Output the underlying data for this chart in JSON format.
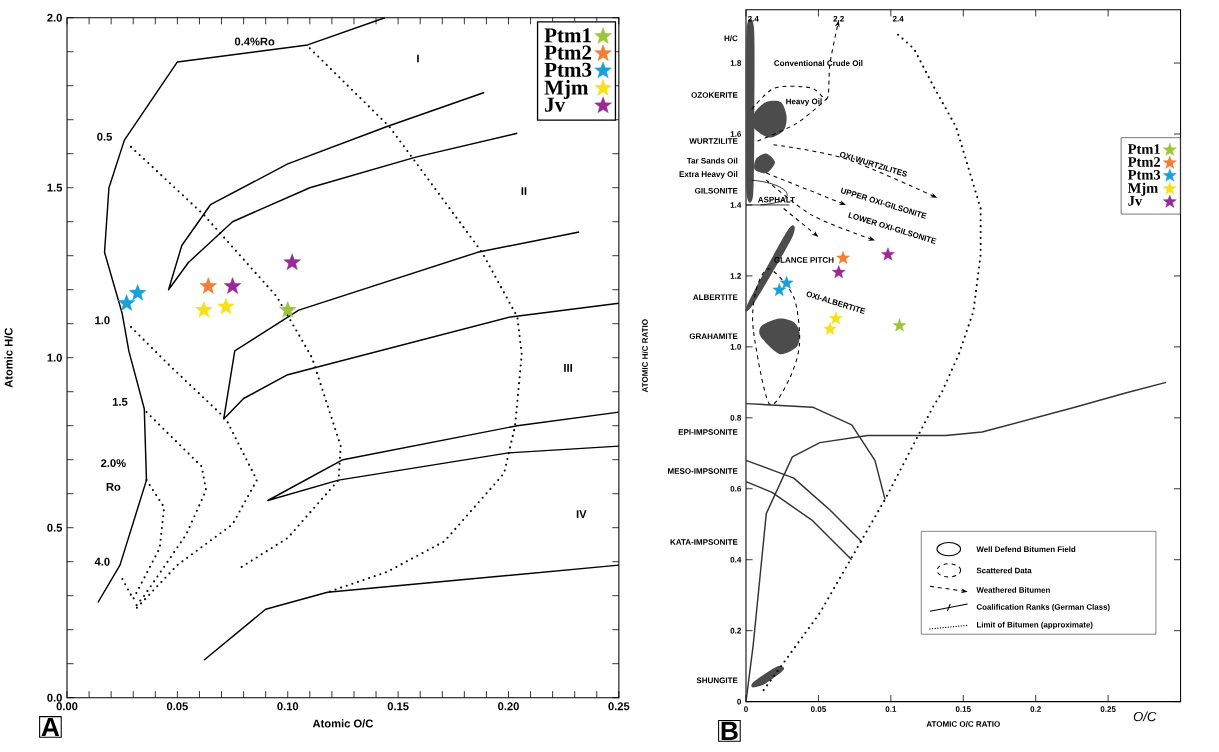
{
  "chart_data": [
    {
      "type": "scatter",
      "xlabel": "Atomic O/C",
      "ylabel": "Atomic H/C",
      "xlim": [
        0,
        0.25
      ],
      "ylim": [
        0,
        2.0
      ],
      "xticks": [
        {
          "value": 0,
          "label": "0.00"
        },
        {
          "value": 0.01,
          "label": null
        },
        {
          "value": 0.02,
          "label": null
        },
        {
          "value": 0.03,
          "label": null
        },
        {
          "value": 0.04,
          "label": null
        },
        {
          "value": 0.05,
          "label": "0.05"
        },
        {
          "value": 0.06,
          "label": null
        },
        {
          "value": 0.07,
          "label": null
        },
        {
          "value": 0.08,
          "label": null
        },
        {
          "value": 0.09,
          "label": null
        },
        {
          "value": 0.1,
          "label": "0.10"
        },
        {
          "value": 0.11,
          "label": null
        },
        {
          "value": 0.12,
          "label": null
        },
        {
          "value": 0.13,
          "label": null
        },
        {
          "value": 0.14,
          "label": null
        },
        {
          "value": 0.15,
          "label": "0.15"
        },
        {
          "value": 0.16,
          "label": null
        },
        {
          "value": 0.17,
          "label": null
        },
        {
          "value": 0.18,
          "label": null
        },
        {
          "value": 0.19,
          "label": null
        },
        {
          "value": 0.2,
          "label": "0.20"
        },
        {
          "value": 0.21,
          "label": null
        },
        {
          "value": 0.22,
          "label": null
        },
        {
          "value": 0.23,
          "label": null
        },
        {
          "value": 0.24,
          "label": null
        },
        {
          "value": 0.25,
          "label": "0.25"
        }
      ],
      "yticks": [
        {
          "value": 0,
          "label": "0.0"
        },
        {
          "value": 0.1,
          "label": null
        },
        {
          "value": 0.2,
          "label": null
        },
        {
          "value": 0.3,
          "label": null
        },
        {
          "value": 0.4,
          "label": null
        },
        {
          "value": 0.5,
          "label": "0.5"
        },
        {
          "value": 0.6,
          "label": null
        },
        {
          "value": 0.7,
          "label": null
        },
        {
          "value": 0.8,
          "label": null
        },
        {
          "value": 0.9,
          "label": null
        },
        {
          "value": 1.0,
          "label": "1.0"
        },
        {
          "value": 1.1,
          "label": null
        },
        {
          "value": 1.2,
          "label": null
        },
        {
          "value": 1.3,
          "label": null
        },
        {
          "value": 1.4,
          "label": null
        },
        {
          "value": 1.5,
          "label": "1.5"
        },
        {
          "value": 1.6,
          "label": null
        },
        {
          "value": 1.7,
          "label": null
        },
        {
          "value": 1.8,
          "label": null
        },
        {
          "value": 1.9,
          "label": null
        },
        {
          "value": 2.0,
          "label": "2.0"
        }
      ],
      "legend": "top right",
      "annotations": [
        "A",
        "0.4%Ro",
        "0.5",
        "1.0",
        "1.5",
        "2.0%",
        "Ro",
        "4.0",
        "I",
        "II",
        "III",
        "IV"
      ],
      "series": [
        {
          "type": "line",
          "color": "#000000",
          "line_style": "solid",
          "x": [
            0.014,
            0.024,
            0.036,
            0.035,
            0.028,
            0.025,
            0.017,
            0.019,
            0.026,
            0.05,
            0.109,
            0.144
          ],
          "values": [
            0.28,
            0.39,
            0.64,
            0.85,
            1.02,
            1.13,
            1.31,
            1.5,
            1.64,
            1.87,
            1.92,
            2.0
          ]
        },
        {
          "type": "line",
          "color": "#000000",
          "line_style": "solid",
          "x": [
            0.189,
            0.145,
            0.1,
            0.065,
            0.052,
            0.046,
            0.055,
            0.075,
            0.11,
            0.158,
            0.204
          ],
          "values": [
            1.78,
            1.68,
            1.57,
            1.45,
            1.33,
            1.2,
            1.28,
            1.4,
            1.5,
            1.59,
            1.66
          ]
        },
        {
          "type": "line",
          "color": "#000000",
          "line_style": "solid",
          "x": [
            0.232,
            0.186,
            0.105,
            0.076,
            0.071,
            0.08,
            0.1,
            0.201,
            0.25
          ],
          "values": [
            1.37,
            1.31,
            1.14,
            1.02,
            0.82,
            0.88,
            0.95,
            1.12,
            1.16
          ]
        },
        {
          "type": "line",
          "color": "#000000",
          "line_style": "solid",
          "x": [
            0.25,
            0.204,
            0.125,
            0.091,
            0.123,
            0.2,
            0.25
          ],
          "values": [
            0.84,
            0.8,
            0.7,
            0.58,
            0.64,
            0.72,
            0.74
          ]
        },
        {
          "type": "line",
          "color": "#000000",
          "line_style": "solid",
          "x": [
            0.062,
            0.09,
            0.118,
            0.25
          ],
          "values": [
            0.11,
            0.26,
            0.31,
            0.39
          ]
        },
        {
          "type": "line",
          "color": "#000000",
          "line_style": "dotted",
          "x": [
            0.11,
            0.146,
            0.188,
            0.204,
            0.206,
            0.203,
            0.198,
            0.171,
            0.145,
            0.118
          ],
          "values": [
            1.91,
            1.68,
            1.31,
            1.12,
            1.01,
            0.8,
            0.66,
            0.46,
            0.37,
            0.31
          ]
        },
        {
          "type": "line",
          "color": "#000000",
          "line_style": "dotted",
          "x": [
            0.029,
            0.062,
            0.095,
            0.111,
            0.124,
            0.123,
            0.1,
            0.078
          ],
          "values": [
            1.62,
            1.42,
            1.18,
            1.0,
            0.74,
            0.64,
            0.47,
            0.38
          ]
        },
        {
          "type": "line",
          "color": "#000000",
          "line_style": "dotted",
          "x": [
            0.029,
            0.046,
            0.072,
            0.086,
            0.075,
            0.05,
            0.031
          ],
          "values": [
            1.09,
            0.98,
            0.82,
            0.64,
            0.51,
            0.39,
            0.26
          ]
        },
        {
          "type": "line",
          "color": "#000000",
          "line_style": "dotted",
          "x": [
            0.036,
            0.061,
            0.063,
            0.054,
            0.035,
            0.03
          ],
          "values": [
            0.84,
            0.68,
            0.61,
            0.48,
            0.3,
            0.26
          ]
        },
        {
          "type": "line",
          "color": "#000000",
          "line_style": "dotted",
          "x": [
            0.036,
            0.044,
            0.042,
            0.03,
            0.025
          ],
          "values": [
            0.64,
            0.56,
            0.44,
            0.29,
            0.35
          ]
        },
        {
          "name": "Ptm1",
          "color": "#9bc53d",
          "marker": "star",
          "x": [
            0.1
          ],
          "values": [
            1.14
          ]
        },
        {
          "name": "Ptm2",
          "color": "#f07f35",
          "marker": "star",
          "x": [
            0.064
          ],
          "values": [
            1.21
          ]
        },
        {
          "name": "Ptm3",
          "color": "#1a9fd8",
          "marker": "star",
          "x": [
            0.027,
            0.032
          ],
          "values": [
            1.16,
            1.19
          ]
        },
        {
          "name": "Mjm",
          "color": "#f6e01c",
          "marker": "star",
          "x": [
            0.062,
            0.072
          ],
          "values": [
            1.14,
            1.15
          ]
        },
        {
          "name": "Jv",
          "color": "#982a97",
          "marker": "star",
          "x": [
            0.075,
            0.102
          ],
          "values": [
            1.21,
            1.28
          ]
        }
      ]
    },
    {
      "type": "scatter",
      "xlabel": "ATOMIC O/C RATIO",
      "ylabel": "ATOMIC H/C RATIO",
      "xlim": [
        0,
        0.3
      ],
      "ylim": [
        0,
        1.95
      ],
      "xticks": [
        0,
        0.05,
        0.1,
        0.15,
        0.2,
        0.25
      ],
      "yticks": [
        0,
        0.2,
        0.4,
        0.6,
        0.8,
        {
          "value": 1.0,
          "label": "1.0"
        },
        1.2,
        1.4,
        1.6,
        1.8
      ],
      "legend": "right",
      "annotations": [
        "B",
        "O/C",
        "H/C",
        "OZOKERITE",
        "WURTZILITE",
        "Tar Sands Oil",
        "Extra Heavy Oil",
        "GILSONITE",
        "ALBERTITE",
        "GRAHAMITE",
        "EPI-IMPSONITE",
        "MESO-IMPSONITE",
        "KATA-IMPSONITE",
        "SHUNGITE",
        "2.4",
        "2.2",
        "2.4",
        "Conventional Crude Oil",
        "Heavy Oil",
        "ASPHALT",
        "GLANCE PITCH",
        "OXI-WURTZILITES",
        "UPPER OXI-GILSONITE",
        "LOWER OXI-GILSONITE",
        "OXI-ALBERTITE",
        "Well Defend Bitumen Field",
        "Scattered Data",
        "Weathered Bitumen",
        "Coalification Ranks (German Class)",
        "Limit of Bitumen (approximate)"
      ],
      "series": [
        {
          "type": "line",
          "color": "#333333",
          "line_style": "solid",
          "x": [
            0,
            0.005,
            0.014,
            0.032,
            0.051,
            0.084,
            0.109,
            0.138,
            0.163,
            0.227,
            0.262,
            0.29
          ],
          "values": [
            0,
            0.16,
            0.53,
            0.69,
            0.73,
            0.75,
            0.75,
            0.75,
            0.76,
            0.83,
            0.87,
            0.9
          ]
        },
        {
          "type": "line",
          "color": "#333333",
          "line_style": "solid",
          "x": [
            0,
            0.046,
            0.073,
            0.089,
            0.096
          ],
          "values": [
            0.84,
            0.83,
            0.78,
            0.68,
            0.57
          ]
        },
        {
          "type": "line",
          "color": "#333333",
          "line_style": "solid",
          "x": [
            0,
            0.033,
            0.058,
            0.08
          ],
          "values": [
            0.68,
            0.63,
            0.54,
            0.45
          ]
        },
        {
          "type": "line",
          "color": "#333333",
          "line_style": "solid",
          "x": [
            0,
            0.018,
            0.046,
            0.073
          ],
          "values": [
            0.62,
            0.59,
            0.51,
            0.4
          ]
        },
        {
          "type": "line",
          "color": "#000000",
          "line_style": "dotted",
          "x": [
            0.105,
            0.116,
            0.13,
            0.145,
            0.162,
            0.162,
            0.157,
            0.147,
            0.135,
            0.129,
            0.096,
            0.051,
            0.01
          ],
          "values": [
            1.88,
            1.84,
            1.73,
            1.62,
            1.39,
            1.26,
            1.1,
            0.98,
            0.87,
            0.83,
            0.57,
            0.25,
            0.02
          ]
        },
        {
          "name": "Ptm1",
          "color": "#9bc53d",
          "marker": "star",
          "x": [
            0.106
          ],
          "values": [
            1.06
          ]
        },
        {
          "name": "Ptm2",
          "color": "#f07f35",
          "marker": "star",
          "x": [
            0.067
          ],
          "values": [
            1.25
          ]
        },
        {
          "name": "Ptm3",
          "color": "#1a9fd8",
          "marker": "star",
          "x": [
            0.023,
            0.028
          ],
          "values": [
            1.16,
            1.18
          ]
        },
        {
          "name": "Mjm",
          "color": "#f6e01c",
          "marker": "star",
          "x": [
            0.058,
            0.062
          ],
          "values": [
            1.05,
            1.08
          ]
        },
        {
          "name": "Jv",
          "color": "#982a97",
          "marker": "star",
          "x": [
            0.064,
            0.098
          ],
          "values": [
            1.21,
            1.26
          ]
        }
      ]
    }
  ]
}
